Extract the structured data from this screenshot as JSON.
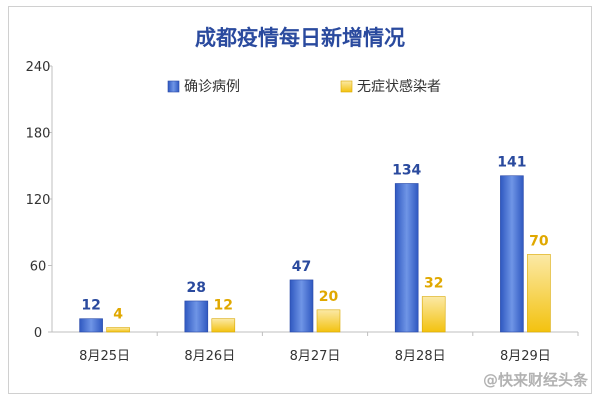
{
  "chart_data": {
    "type": "bar",
    "title": "成都疫情每日新增情况",
    "categories": [
      "8月25日",
      "8月26日",
      "8月27日",
      "8月28日",
      "8月29日"
    ],
    "series": [
      {
        "name": "确诊病例",
        "values": [
          12,
          28,
          47,
          134,
          141
        ],
        "color": "#3a63c9",
        "label_color": "#2a4a9e"
      },
      {
        "name": "无症状感染者",
        "values": [
          4,
          12,
          20,
          32,
          70
        ],
        "color": "#f6c417",
        "label_color": "#e0a800"
      }
    ],
    "ylim": [
      0,
      240
    ],
    "yticks": [
      0,
      60,
      120,
      180,
      240
    ],
    "xlabel": "",
    "ylabel": "",
    "grid": false,
    "legend_position": "top-center",
    "title_color": "#2a4a9e"
  },
  "watermark": "@快来财经头条"
}
